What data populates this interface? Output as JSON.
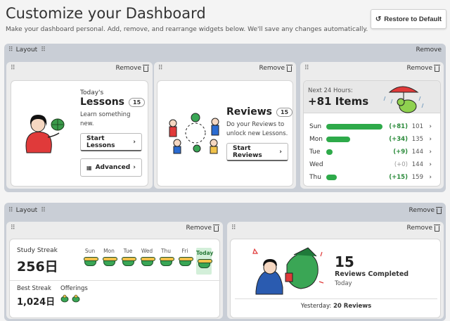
{
  "page": {
    "title": "Customize your Dashboard",
    "subtitle": "Make your dashboard personal. Add, remove, and rearrange widgets below. We'll save any changes automatically.",
    "restore_label": "Restore to Default"
  },
  "layout_label": "Layout",
  "remove_label": "Remove",
  "lessons": {
    "todays": "Today's",
    "title": "Lessons",
    "count": "15",
    "desc": "Learn something new.",
    "start_label": "Start Lessons",
    "advanced_label": "Advanced"
  },
  "reviews": {
    "title": "Reviews",
    "count": "15",
    "desc": "Do your Reviews to unlock new Lessons.",
    "start_label": "Start Reviews"
  },
  "forecast": {
    "header": "Next 24 Hours:",
    "total": "+81 Items",
    "rows": [
      {
        "day": "Sun",
        "delta": "(+81)",
        "total": "101",
        "fill": 1.0
      },
      {
        "day": "Mon",
        "delta": "(+34)",
        "total": "135",
        "fill": 0.42
      },
      {
        "day": "Tue",
        "delta": "(+9)",
        "total": "144",
        "fill": 0.11
      },
      {
        "day": "Wed",
        "delta": "(+0)",
        "total": "144",
        "fill": 0.0
      },
      {
        "day": "Thu",
        "delta": "(+15)",
        "total": "159",
        "fill": 0.19
      }
    ]
  },
  "streak": {
    "label": "Study Streak",
    "value": "256日",
    "days": [
      "Sun",
      "Mon",
      "Tue",
      "Wed",
      "Thu",
      "Fri",
      "Today"
    ],
    "best_label": "Best Streak",
    "best_value": "1,024日",
    "offerings_label": "Offerings"
  },
  "completed": {
    "count": "15",
    "label": "Reviews Completed",
    "when": "Today",
    "yesterday_label": "Yesterday:",
    "yesterday_value": "20 Reviews"
  },
  "colors": {
    "accent_green": "#2eaa4a",
    "panel": "#c9ced6"
  }
}
